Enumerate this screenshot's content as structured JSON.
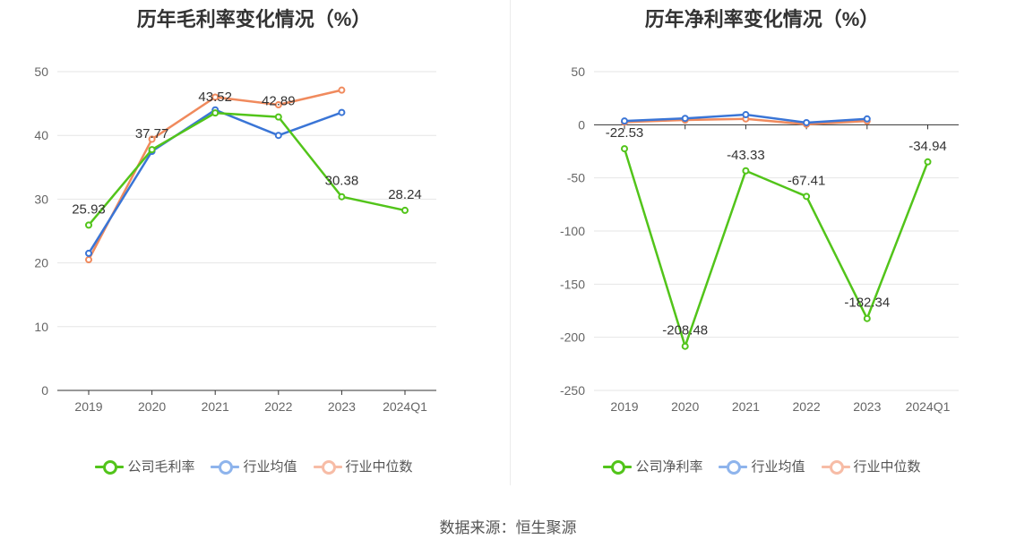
{
  "source": "数据来源：恒生聚源",
  "colors": {
    "company": "#52c41a",
    "industry_avg": "#3a75d6",
    "industry_median": "#f08a5d",
    "legend_avg": "#8eb4ec",
    "legend_median": "#f7bca6",
    "grid": "#e6e6e6",
    "axis": "#333333"
  },
  "chart_data": [
    {
      "type": "line",
      "title": "历年毛利率变化情况（%）",
      "categories": [
        "2019",
        "2020",
        "2021",
        "2022",
        "2023",
        "2024Q1"
      ],
      "ylim": [
        0,
        50
      ],
      "yticks": [
        0,
        10,
        20,
        30,
        40,
        50
      ],
      "series": [
        {
          "name": "公司毛利率",
          "key": "company",
          "labeled": true,
          "values": [
            25.93,
            37.77,
            43.52,
            42.89,
            30.38,
            28.24
          ]
        },
        {
          "name": "行业均值",
          "key": "industry_avg",
          "labeled": false,
          "values": [
            21.5,
            37.5,
            44.0,
            40.0,
            43.6,
            null
          ]
        },
        {
          "name": "行业中位数",
          "key": "industry_median",
          "labeled": false,
          "values": [
            20.5,
            39.4,
            46.0,
            44.8,
            47.1,
            null
          ]
        }
      ]
    },
    {
      "type": "line",
      "title": "历年净利率变化情况（%）",
      "categories": [
        "2019",
        "2020",
        "2021",
        "2022",
        "2023",
        "2024Q1"
      ],
      "ylim": [
        -250,
        50
      ],
      "yticks": [
        50,
        0,
        -50,
        -100,
        -150,
        -200,
        -250
      ],
      "series": [
        {
          "name": "公司净利率",
          "key": "company",
          "labeled": true,
          "values": [
            -22.53,
            -208.48,
            -43.33,
            -67.41,
            -182.34,
            -34.94
          ]
        },
        {
          "name": "行业均值",
          "key": "industry_avg",
          "labeled": false,
          "values": [
            3.5,
            6.0,
            9.5,
            2.0,
            5.5,
            null
          ]
        },
        {
          "name": "行业中位数",
          "key": "industry_median",
          "labeled": false,
          "values": [
            2.5,
            4.5,
            5.5,
            0.5,
            3.5,
            null
          ]
        }
      ]
    }
  ]
}
